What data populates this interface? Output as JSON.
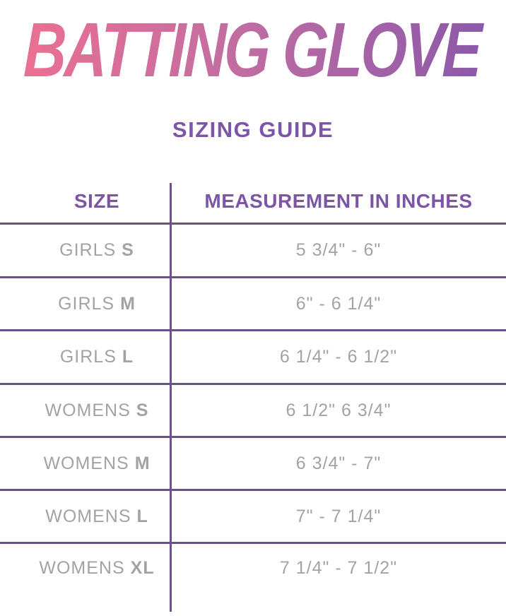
{
  "page": {
    "title": "BATTING GLOVE",
    "subtitle": "SIZING GUIDE"
  },
  "table": {
    "headers": {
      "size": "SIZE",
      "measurement": "MEASUREMENT IN INCHES"
    },
    "rows": [
      {
        "group": "GIRLS",
        "size": "S",
        "measurement": "5 3/4\" - 6\""
      },
      {
        "group": "GIRLS",
        "size": "M",
        "measurement": "6\" - 6 1/4\""
      },
      {
        "group": "GIRLS",
        "size": "L",
        "measurement": "6 1/4\" - 6 1/2\""
      },
      {
        "group": "WOMENS",
        "size": "S",
        "measurement": "6 1/2\" 6 3/4\""
      },
      {
        "group": "WOMENS",
        "size": "M",
        "measurement": "6 3/4\" - 7\""
      },
      {
        "group": "WOMENS",
        "size": "L",
        "measurement": "7\" - 7 1/4\""
      },
      {
        "group": "WOMENS",
        "size": "XL",
        "measurement": "7 1/4\" - 7 1/2\""
      }
    ]
  },
  "chart_data": {
    "type": "table",
    "title": "BATTING GLOVE",
    "subtitle": "SIZING GUIDE",
    "columns": [
      "SIZE",
      "MEASUREMENT IN INCHES"
    ],
    "rows": [
      [
        "GIRLS S",
        "5 3/4\" - 6\""
      ],
      [
        "GIRLS M",
        "6\" - 6 1/4\""
      ],
      [
        "GIRLS L",
        "6 1/4\" - 6 1/2\""
      ],
      [
        "WOMENS S",
        "6 1/2\" 6 3/4\""
      ],
      [
        "WOMENS M",
        "6 3/4\" - 7\""
      ],
      [
        "WOMENS L",
        "7\" - 7 1/4\""
      ],
      [
        "WOMENS XL",
        "7 1/4\" - 7 1/2\""
      ]
    ]
  },
  "colors": {
    "title_gradient_start": "#ef7090",
    "title_gradient_mid": "#c06da2",
    "title_gradient_end": "#8757a9",
    "heading_purple": "#7c55a7",
    "line_purple": "#6a5287",
    "text_gray": "#a3a2a7"
  }
}
